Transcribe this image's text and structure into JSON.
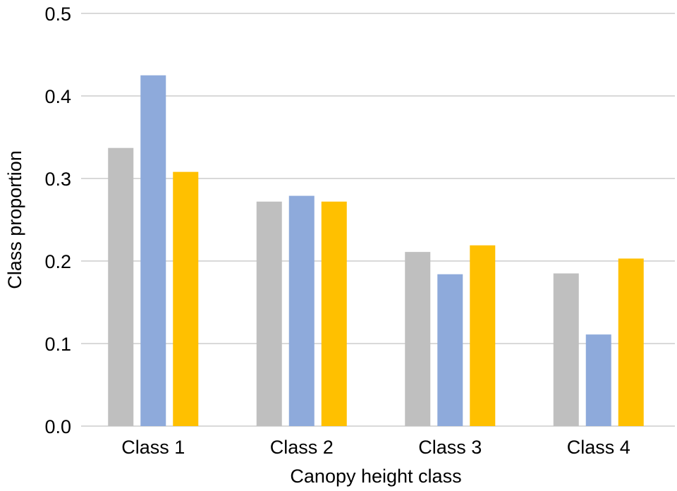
{
  "chart_data": {
    "type": "bar",
    "categories": [
      "Class 1",
      "Class 2",
      "Class 3",
      "Class 4"
    ],
    "series": [
      {
        "values": [
          0.337,
          0.272,
          0.211,
          0.185
        ],
        "color": "#bfbfbf"
      },
      {
        "values": [
          0.425,
          0.279,
          0.184,
          0.111
        ],
        "color": "#8eaadb"
      },
      {
        "values": [
          0.308,
          0.272,
          0.219,
          0.203
        ],
        "color": "#ffc000"
      }
    ],
    "title": "",
    "xlabel": "Canopy height class",
    "ylabel": "Class proportion",
    "ylim": [
      0,
      0.5
    ],
    "yticks": [
      "0.0",
      "0.1",
      "0.2",
      "0.3",
      "0.4",
      "0.5"
    ],
    "grid": true,
    "legend": "none"
  }
}
